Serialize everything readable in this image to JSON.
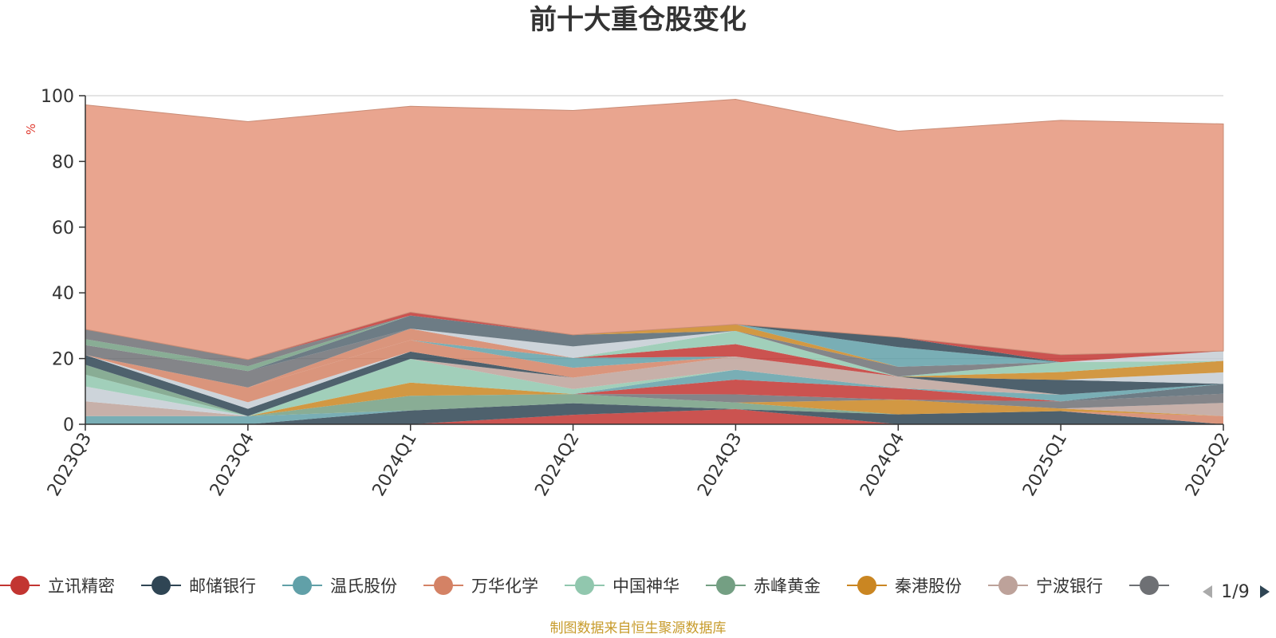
{
  "chart_data": {
    "type": "area",
    "title": "前十大重仓股变化",
    "y_unit": "%",
    "ylim": [
      0,
      100
    ],
    "yticks": [
      0,
      20,
      40,
      60,
      80,
      100
    ],
    "categories": [
      "2023Q3",
      "2023Q4",
      "2024Q1",
      "2024Q2",
      "2024Q3",
      "2024Q4",
      "2025Q1",
      "2025Q2"
    ],
    "source_note": "制图数据来自恒生聚源数据库",
    "legend_pager": "1/9",
    "legend_visible": [
      "立讯精密",
      "邮储银行",
      "温氏股份",
      "万华化学",
      "中国神华",
      "赤峰黄金",
      "秦港股份",
      "宁波银行"
    ],
    "colors": [
      "#c23531",
      "#2f4554",
      "#61a0a8",
      "#d48265",
      "#91c7ae",
      "#749f83",
      "#ca8622",
      "#bda29a",
      "#6e7074",
      "#546570",
      "#c4ccd3"
    ],
    "series": [
      {
        "name": "立讯精密",
        "color": "#c23531",
        "values": [
          0,
          0,
          0,
          2.9,
          4.6,
          0,
          0,
          0
        ]
      },
      {
        "name": "邮储银行",
        "color": "#2f4554",
        "values": [
          0,
          0,
          4.2,
          3.5,
          0,
          3.0,
          4.0,
          0
        ]
      },
      {
        "name": "温氏股份",
        "color": "#61a0a8",
        "values": [
          2.5,
          2.5,
          0,
          0,
          0,
          0,
          0,
          0
        ]
      },
      {
        "name": "万华化学",
        "color": "#d48265",
        "values": [
          0,
          0,
          0,
          0,
          0,
          0,
          0,
          2.5
        ]
      },
      {
        "name": "中国神华",
        "color": "#91c7ae",
        "values": [
          0,
          0,
          0,
          0,
          0,
          0,
          0,
          0
        ]
      },
      {
        "name": "赤峰黄金",
        "color": "#749f83",
        "values": [
          0,
          0,
          4.5,
          2.8,
          2.0,
          0,
          0,
          0
        ]
      },
      {
        "name": "秦港股份",
        "color": "#ca8622",
        "values": [
          0,
          0,
          4.0,
          0,
          0,
          4.5,
          0.8,
          0
        ]
      },
      {
        "name": "宁波银行",
        "color": "#bda29a",
        "values": [
          4.5,
          0,
          0,
          0,
          0,
          0,
          0,
          4.0
        ]
      },
      {
        "name": "",
        "color": "#6e7074",
        "values": [
          0,
          0,
          0,
          0,
          2.5,
          0,
          2.2,
          2.8
        ]
      },
      {
        "name": "",
        "color": "#546570",
        "values": [
          0,
          0,
          0,
          0,
          0,
          0,
          0,
          3.0
        ]
      },
      {
        "name": "",
        "color": "#c4ccd3",
        "values": [
          4.5,
          0,
          0,
          0,
          0,
          0,
          0,
          0
        ]
      },
      {
        "name": "",
        "color": "#c23531",
        "values": [
          0,
          0,
          0,
          0,
          4.5,
          3.5,
          0,
          0
        ]
      },
      {
        "name": "",
        "color": "#61a0a8",
        "values": [
          0,
          0,
          0,
          0,
          3.0,
          0,
          2.0,
          0
        ]
      },
      {
        "name": "",
        "color": "#91c7ae",
        "values": [
          3.6,
          0,
          7.2,
          1.5,
          0,
          0,
          0,
          0
        ]
      },
      {
        "name": "",
        "color": "#749f83",
        "values": [
          3.0,
          0,
          0,
          0,
          0,
          0,
          0,
          0
        ]
      },
      {
        "name": "",
        "color": "#bda29a",
        "values": [
          0,
          0,
          0,
          3.5,
          4.0,
          3.5,
          0,
          0
        ]
      },
      {
        "name": "",
        "color": "#2f4554",
        "values": [
          3.0,
          2.2,
          2.2,
          0,
          0,
          0,
          4.5,
          0
        ]
      },
      {
        "name": "",
        "color": "#c4ccd3",
        "values": [
          0,
          2.0,
          0,
          0,
          0,
          0,
          0,
          3.5
        ]
      },
      {
        "name": "",
        "color": "#d48265",
        "values": [
          0,
          4.5,
          3.5,
          3.0,
          0,
          0,
          0,
          0
        ]
      },
      {
        "name": "",
        "color": "#61a0a8",
        "values": [
          0,
          0,
          0,
          3.0,
          0,
          0,
          0,
          0
        ]
      },
      {
        "name": "",
        "color": "#ca8622",
        "values": [
          0,
          0,
          0,
          0,
          0,
          0,
          2.4,
          3.5
        ]
      },
      {
        "name": "",
        "color": "#c23531",
        "values": [
          0,
          0,
          0,
          0,
          3.8,
          0,
          0,
          0
        ]
      },
      {
        "name": "",
        "color": "#91c7ae",
        "values": [
          0,
          0,
          0,
          0,
          4.0,
          0,
          3.0,
          0
        ]
      },
      {
        "name": "",
        "color": "#d48265",
        "values": [
          0,
          0,
          3.5,
          0,
          0,
          0,
          0,
          0
        ]
      },
      {
        "name": "",
        "color": "#6e7074",
        "values": [
          3.0,
          5.0,
          0,
          0,
          0,
          3.0,
          0,
          0
        ]
      },
      {
        "name": "",
        "color": "#c4ccd3",
        "values": [
          0,
          0,
          0,
          3.5,
          0,
          0,
          0,
          3.0
        ]
      },
      {
        "name": "",
        "color": "#546570",
        "values": [
          0,
          0,
          4.0,
          3.5,
          0,
          0,
          0,
          0
        ]
      },
      {
        "name": "",
        "color": "#749f83",
        "values": [
          1.8,
          1.5,
          0,
          0,
          0,
          0,
          0,
          0
        ]
      },
      {
        "name": "",
        "color": "#ca8622",
        "values": [
          0,
          0,
          0,
          0,
          2.0,
          0,
          0,
          0
        ]
      },
      {
        "name": "",
        "color": "#61a0a8",
        "values": [
          0,
          0,
          0,
          0,
          0,
          6.0,
          0,
          0
        ]
      },
      {
        "name": "",
        "color": "#2f4554",
        "values": [
          0,
          0,
          0,
          0,
          0,
          3.0,
          0,
          0
        ]
      },
      {
        "name": "",
        "color": "#6e7074",
        "values": [
          3.0,
          2.0,
          0,
          0,
          0,
          0,
          0,
          0
        ]
      },
      {
        "name": "",
        "color": "#c23531",
        "values": [
          0,
          0,
          1.0,
          0,
          0,
          0,
          2.3,
          0
        ]
      },
      {
        "name": "",
        "color": "#e9a58f",
        "values": [
          68.3,
          72.4,
          62.7,
          68.3,
          68.5,
          62.7,
          71.3,
          69.1
        ]
      }
    ]
  }
}
